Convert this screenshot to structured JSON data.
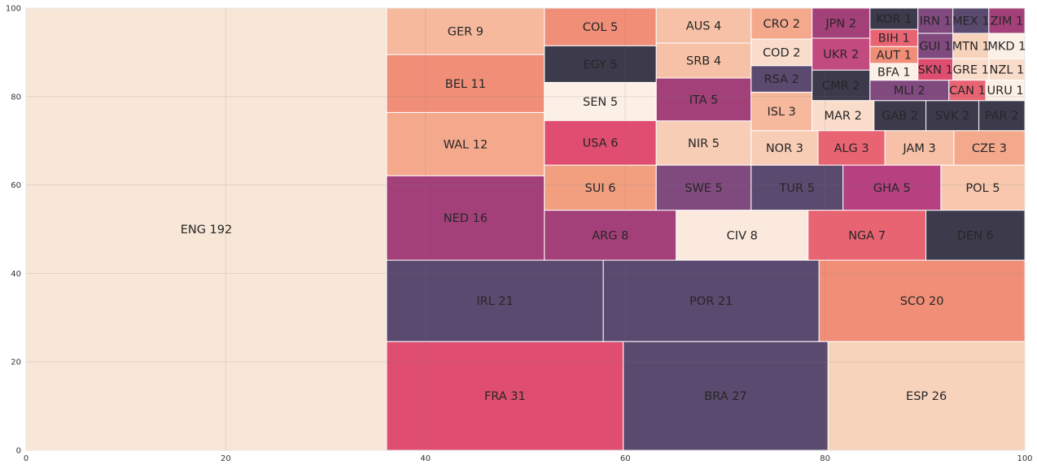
{
  "chart_data": {
    "type": "treemap",
    "title": "",
    "xlabel": "",
    "ylabel": "",
    "xlim": [
      0,
      100
    ],
    "ylim": [
      0,
      100
    ],
    "grid": true,
    "xticks": [
      "0",
      "20",
      "40",
      "60",
      "80",
      "100"
    ],
    "yticks": [
      "0",
      "20",
      "40",
      "60",
      "80",
      "100"
    ],
    "palette": [
      "#f8d3bc",
      "#f3a381",
      "#ea8e77",
      "#df4e70",
      "#a44079",
      "#5b4a6f",
      "#3d3a4c",
      "#f8e6d6"
    ],
    "items": [
      {
        "label": "ENG 192",
        "value": 192,
        "color": "#f8e6d6"
      },
      {
        "label": "FRA 31",
        "value": 31,
        "color": "#df4e70"
      },
      {
        "label": "BRA 27",
        "value": 27,
        "color": "#5b4a6f"
      },
      {
        "label": "ESP 26",
        "value": 26,
        "color": "#f8d3bc"
      },
      {
        "label": "IRL 21",
        "value": 21,
        "color": "#5b4a6f"
      },
      {
        "label": "POR 21",
        "value": 21,
        "color": "#5b4a6f"
      },
      {
        "label": "SCO 20",
        "value": 20,
        "color": "#f08e78"
      },
      {
        "label": "NED 16",
        "value": 16,
        "color": "#a44079"
      },
      {
        "label": "WAL 12",
        "value": 12,
        "color": "#f4a98d"
      },
      {
        "label": "BEL 11",
        "value": 11,
        "color": "#f08e78"
      },
      {
        "label": "GER 9",
        "value": 9,
        "color": "#f6b99e"
      },
      {
        "label": "ARG 8",
        "value": 8,
        "color": "#a44079"
      },
      {
        "label": "CIV 8",
        "value": 8,
        "color": "#fbe9dd"
      },
      {
        "label": "NGA 7",
        "value": 7,
        "color": "#e96473"
      },
      {
        "label": "DEN 6",
        "value": 6,
        "color": "#3d3a4c"
      },
      {
        "label": "SUI 6",
        "value": 6,
        "color": "#f29f80"
      },
      {
        "label": "USA 6",
        "value": 6,
        "color": "#df4e70"
      },
      {
        "label": "SEN 5",
        "value": 5,
        "color": "#fcefe6"
      },
      {
        "label": "EGY 5",
        "value": 5,
        "color": "#3d3a4c"
      },
      {
        "label": "COL 5",
        "value": 5,
        "color": "#f08e78"
      },
      {
        "label": "SWE 5",
        "value": 5,
        "color": "#804a7f"
      },
      {
        "label": "TUR 5",
        "value": 5,
        "color": "#5b4a6f"
      },
      {
        "label": "GHA 5",
        "value": 5,
        "color": "#b64080"
      },
      {
        "label": "POL 5",
        "value": 5,
        "color": "#f8c7ae"
      },
      {
        "label": "NIR 5",
        "value": 5,
        "color": "#f8cdb6"
      },
      {
        "label": "ITA 5",
        "value": 5,
        "color": "#a44079"
      },
      {
        "label": "SRB 4",
        "value": 4,
        "color": "#f6c1a6"
      },
      {
        "label": "AUS 4",
        "value": 4,
        "color": "#f6c1a6"
      },
      {
        "label": "NOR 3",
        "value": 3,
        "color": "#f8cdb6"
      },
      {
        "label": "ALG 3",
        "value": 3,
        "color": "#e96473"
      },
      {
        "label": "JAM 3",
        "value": 3,
        "color": "#f6c1a6"
      },
      {
        "label": "CZE 3",
        "value": 3,
        "color": "#f4a98d"
      },
      {
        "label": "ISL 3",
        "value": 3,
        "color": "#f6b99e"
      },
      {
        "label": "MAR 2",
        "value": 2,
        "color": "#fadccb"
      },
      {
        "label": "GAB 2",
        "value": 2,
        "color": "#3d3a4c"
      },
      {
        "label": "SVK 2",
        "value": 2,
        "color": "#3d3a4c"
      },
      {
        "label": "PAR 2",
        "value": 2,
        "color": "#3d3a4c"
      },
      {
        "label": "RSA 2",
        "value": 2,
        "color": "#5b4a6f"
      },
      {
        "label": "CMR 2",
        "value": 2,
        "color": "#3d3a4c"
      },
      {
        "label": "COD 2",
        "value": 2,
        "color": "#fadccb"
      },
      {
        "label": "CRO 2",
        "value": 2,
        "color": "#f4a98d"
      },
      {
        "label": "JPN 2",
        "value": 2,
        "color": "#a44079"
      },
      {
        "label": "UKR 2",
        "value": 2,
        "color": "#c24a7e"
      },
      {
        "label": "MLI 2",
        "value": 2,
        "color": "#804a7f"
      },
      {
        "label": "KOR 1",
        "value": 1,
        "color": "#3d3a4c"
      },
      {
        "label": "BIH 1",
        "value": 1,
        "color": "#e96473"
      },
      {
        "label": "AUT 1",
        "value": 1,
        "color": "#f08e78"
      },
      {
        "label": "BFA 1",
        "value": 1,
        "color": "#fcefe6"
      },
      {
        "label": "IRN 1",
        "value": 1,
        "color": "#804a7f"
      },
      {
        "label": "GUI 1",
        "value": 1,
        "color": "#804a7f"
      },
      {
        "label": "SKN 1",
        "value": 1,
        "color": "#df4e70"
      },
      {
        "label": "MEX 1",
        "value": 1,
        "color": "#5b4a6f"
      },
      {
        "label": "MTN 1",
        "value": 1,
        "color": "#f8d3bc"
      },
      {
        "label": "GRE 1",
        "value": 1,
        "color": "#fadccb"
      },
      {
        "label": "ZIM 1",
        "value": 1,
        "color": "#a44079"
      },
      {
        "label": "MKD 1",
        "value": 1,
        "color": "#fcefe6"
      },
      {
        "label": "NZL 1",
        "value": 1,
        "color": "#fadccb"
      },
      {
        "label": "CAN 1",
        "value": 1,
        "color": "#e96473"
      },
      {
        "label": "URU 1",
        "value": 1,
        "color": "#fcefe6"
      }
    ]
  }
}
